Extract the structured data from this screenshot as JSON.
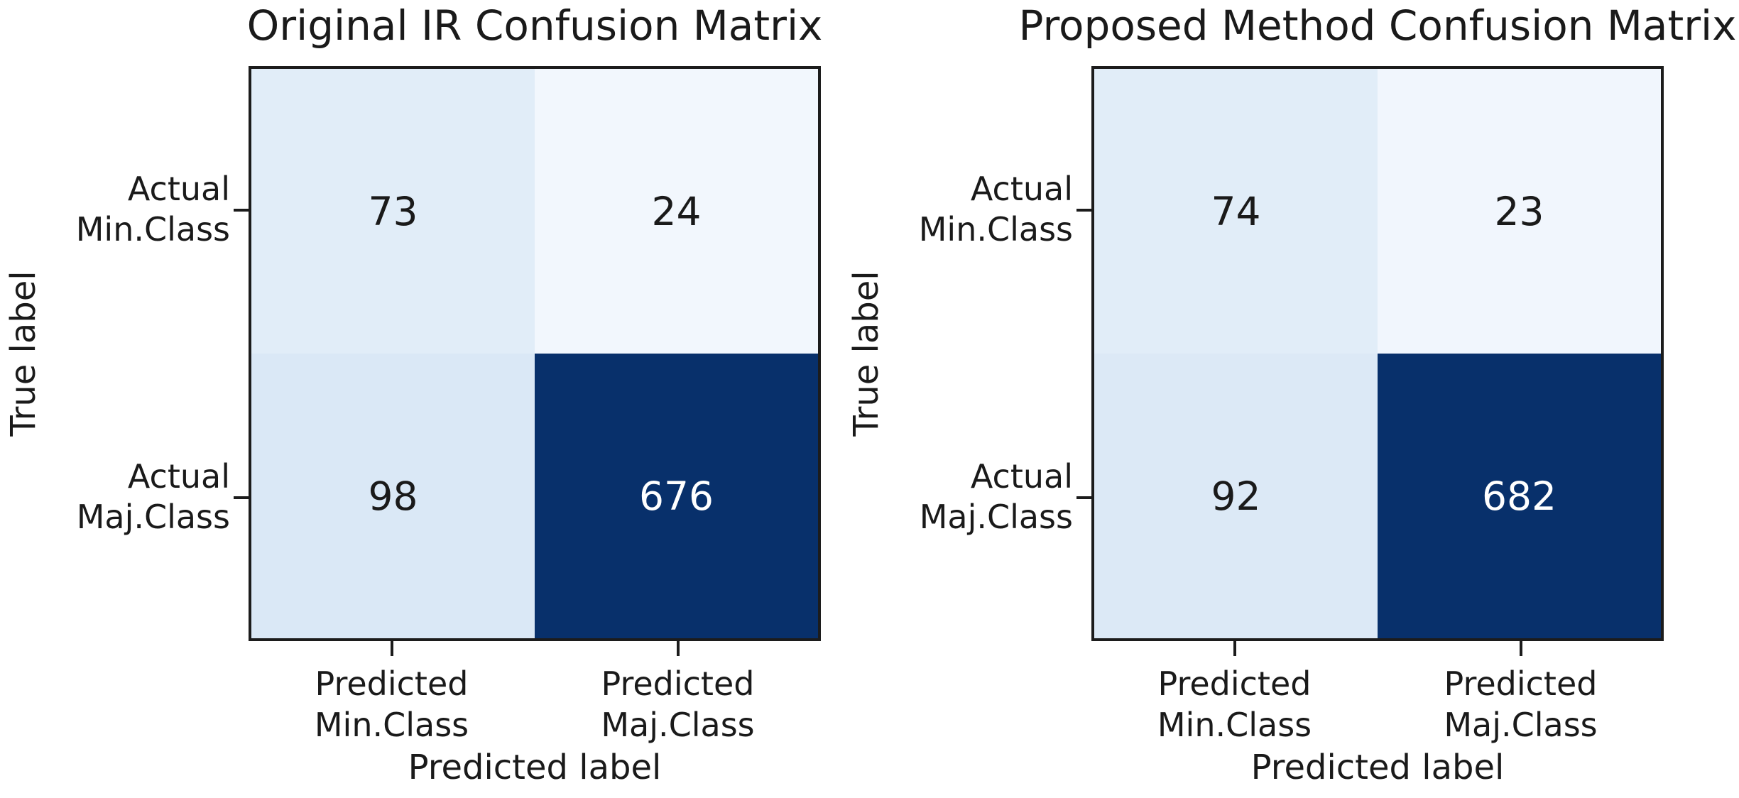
{
  "figure": {
    "background": "#ffffff",
    "text_color": "#1a1a1a",
    "spine_color": "#1c1c1c"
  },
  "axis": {
    "ylabel": "True label",
    "xlabel": "Predicted label",
    "yticks": [
      [
        "Actual",
        "Min.Class"
      ],
      [
        "Actual",
        "Maj.Class"
      ]
    ],
    "xticks": [
      [
        "Predicted",
        "Min.Class"
      ],
      [
        "Predicted",
        "Maj.Class"
      ]
    ]
  },
  "chart_data": [
    {
      "type": "heatmap",
      "title": "Original IR Confusion Matrix",
      "xlabel": "Predicted label",
      "ylabel": "True label",
      "x_categories": [
        "Predicted Min.Class",
        "Predicted Maj.Class"
      ],
      "y_categories": [
        "Actual Min.Class",
        "Actual Maj.Class"
      ],
      "values": [
        [
          73,
          24
        ],
        [
          98,
          676
        ]
      ],
      "colormap": "Blues",
      "cell_colors": [
        [
          "#e1edf8",
          "#f2f7fd"
        ],
        [
          "#dae8f6",
          "#08306b"
        ]
      ],
      "cell_text_colors": [
        [
          "#1a1a1a",
          "#1a1a1a"
        ],
        [
          "#1a1a1a",
          "#ffffff"
        ]
      ],
      "legend_position": "none",
      "grid": false
    },
    {
      "type": "heatmap",
      "title": "Proposed Method Confusion Matrix",
      "xlabel": "Predicted label",
      "ylabel": "True label",
      "x_categories": [
        "Predicted Min.Class",
        "Predicted Maj.Class"
      ],
      "y_categories": [
        "Actual Min.Class",
        "Actual Maj.Class"
      ],
      "values": [
        [
          74,
          23
        ],
        [
          92,
          682
        ]
      ],
      "colormap": "Blues",
      "cell_colors": [
        [
          "#e1edf8",
          "#f1f6fd"
        ],
        [
          "#dce9f6",
          "#08306b"
        ]
      ],
      "cell_text_colors": [
        [
          "#1a1a1a",
          "#1a1a1a"
        ],
        [
          "#1a1a1a",
          "#ffffff"
        ]
      ],
      "legend_position": "none",
      "grid": false
    }
  ]
}
